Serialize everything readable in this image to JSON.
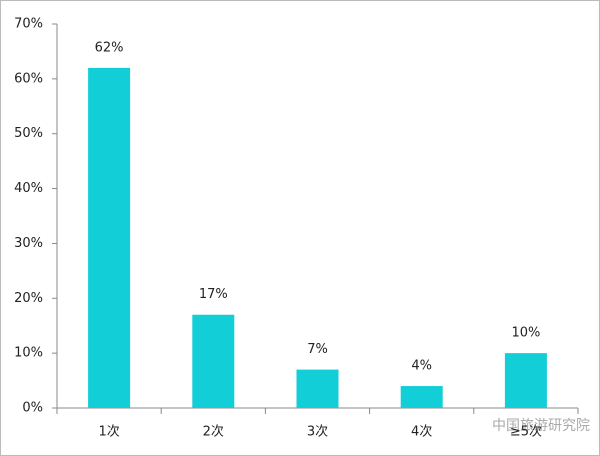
{
  "chart_data": {
    "type": "bar",
    "categories": [
      "1次",
      "2次",
      "3次",
      "4次",
      "≥5次"
    ],
    "values": [
      62,
      17,
      7,
      4,
      10
    ],
    "value_labels": [
      "62%",
      "17%",
      "7%",
      "4%",
      "10%"
    ],
    "color": "#12ced6",
    "ylim": [
      0,
      70
    ],
    "yticks": [
      {
        "value": 0,
        "label": "0%"
      },
      {
        "value": 10,
        "label": "10%"
      },
      {
        "value": 20,
        "label": "20%"
      },
      {
        "value": 30,
        "label": "30%"
      },
      {
        "value": 40,
        "label": "40%"
      },
      {
        "value": 50,
        "label": "50%"
      },
      {
        "value": 60,
        "label": "60%"
      },
      {
        "value": 70,
        "label": "70%"
      }
    ],
    "watermark": "中国旅游研究院"
  }
}
